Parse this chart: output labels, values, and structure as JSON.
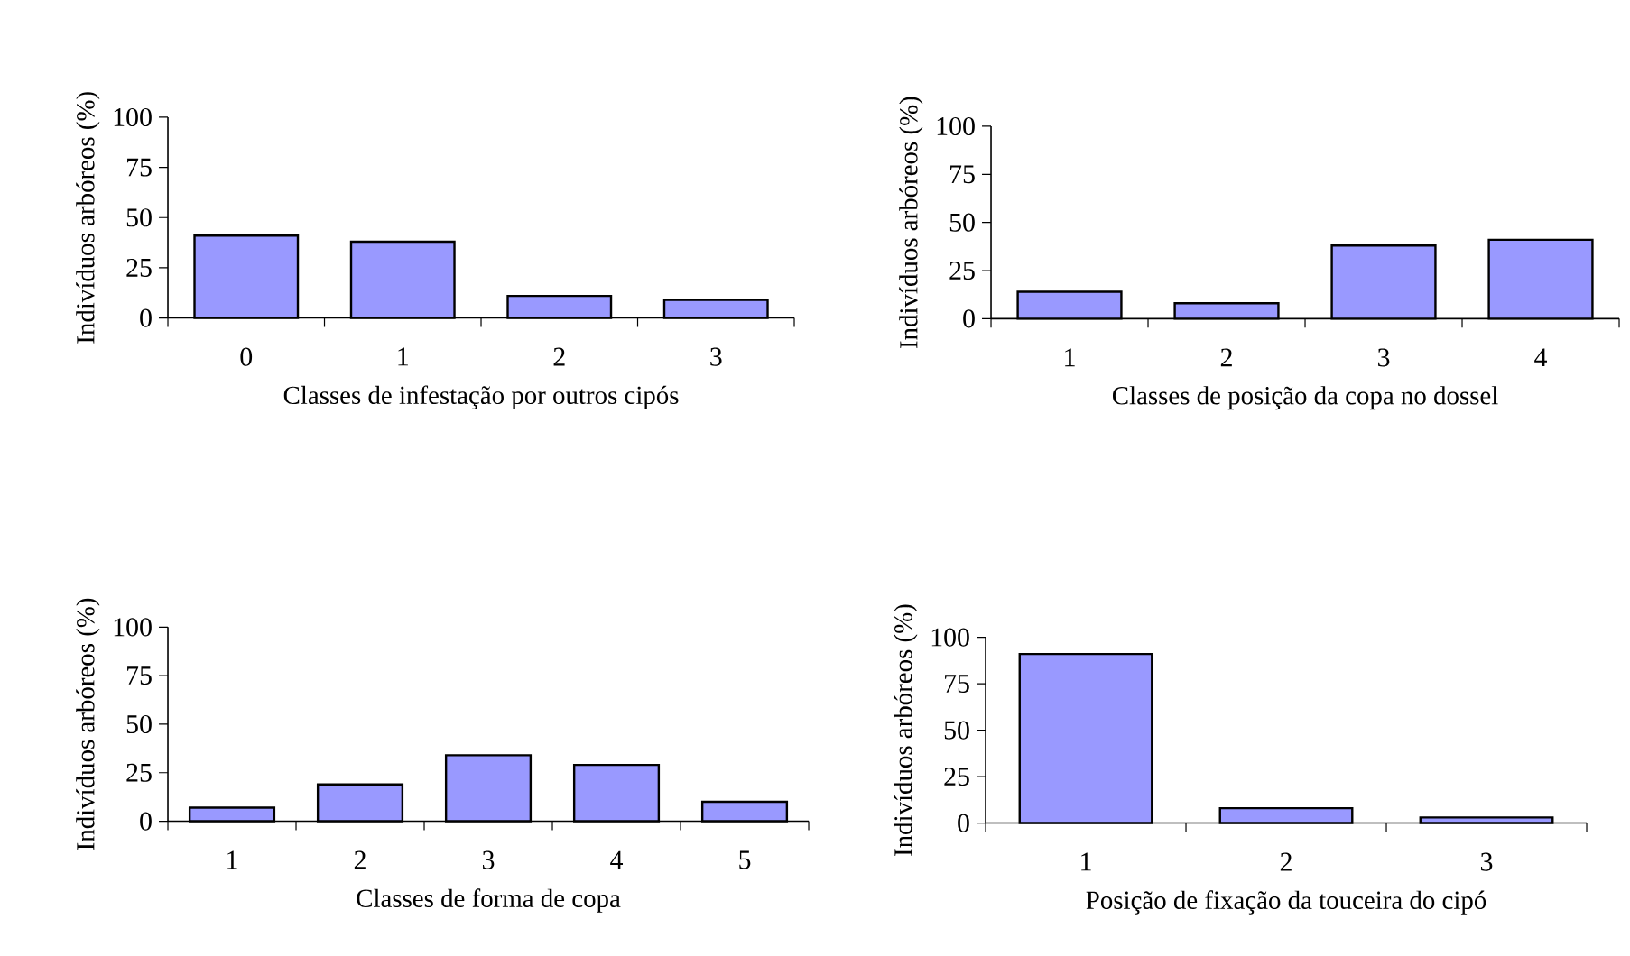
{
  "chart_data": [
    {
      "type": "bar",
      "categories": [
        "0",
        "1",
        "2",
        "3"
      ],
      "values": [
        41,
        38,
        11,
        9
      ],
      "color": "#9999ff",
      "ylim": [
        0,
        100
      ],
      "yticks": [
        0,
        25,
        50,
        75,
        100
      ],
      "xlabel": "Classes de infestação por outros cipós",
      "ylabel": "Indivíduos arbóreos (%)"
    },
    {
      "type": "bar",
      "categories": [
        "1",
        "2",
        "3",
        "4"
      ],
      "values": [
        14,
        8,
        38,
        41
      ],
      "color": "#9999ff",
      "ylim": [
        0,
        100
      ],
      "yticks": [
        0,
        25,
        50,
        75,
        100
      ],
      "xlabel": "Classes de posição da copa no dossel",
      "ylabel": "Indivíduos arbóreos (%)"
    },
    {
      "type": "bar",
      "categories": [
        "1",
        "2",
        "3",
        "4",
        "5"
      ],
      "values": [
        7,
        19,
        34,
        29,
        10
      ],
      "color": "#9999ff",
      "ylim": [
        0,
        100
      ],
      "yticks": [
        0,
        25,
        50,
        75,
        100
      ],
      "xlabel": "Classes de forma de copa",
      "ylabel": "Indivíduos arbóreos (%)"
    },
    {
      "type": "bar",
      "categories": [
        "1",
        "2",
        "3"
      ],
      "values": [
        91,
        8,
        3
      ],
      "color": "#9999ff",
      "ylim": [
        0,
        100
      ],
      "yticks": [
        0,
        25,
        50,
        75,
        100
      ],
      "xlabel": "Posição de fixação da touceira do cipó",
      "ylabel": "Indivíduos arbóreos (%)"
    }
  ]
}
